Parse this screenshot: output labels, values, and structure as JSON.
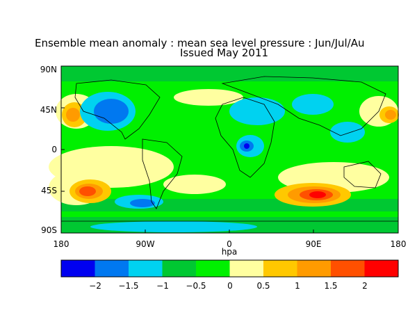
{
  "title": {
    "line1": "Ensemble mean anomaly : mean sea level pressure : Jun/Jul/Au",
    "line2": "Issued May 2011"
  },
  "map": {
    "lat_ticks": [
      "90N",
      "45N",
      "0",
      "45S",
      "90S"
    ],
    "lon_ticks": [
      "180",
      "90W",
      "0",
      "90E",
      "180"
    ],
    "units_label": "hpa"
  },
  "colorbar": {
    "tick_labels": [
      "−2",
      "−1.5",
      "−1",
      "−0.5",
      "0",
      "0.5",
      "1",
      "1.5",
      "2"
    ],
    "colors": [
      "#0000f0",
      "#0078f0",
      "#00d2f0",
      "#00c832",
      "#00f000",
      "#ffffa0",
      "#ffc800",
      "#ff9b00",
      "#ff5000",
      "#ff0000"
    ]
  }
}
